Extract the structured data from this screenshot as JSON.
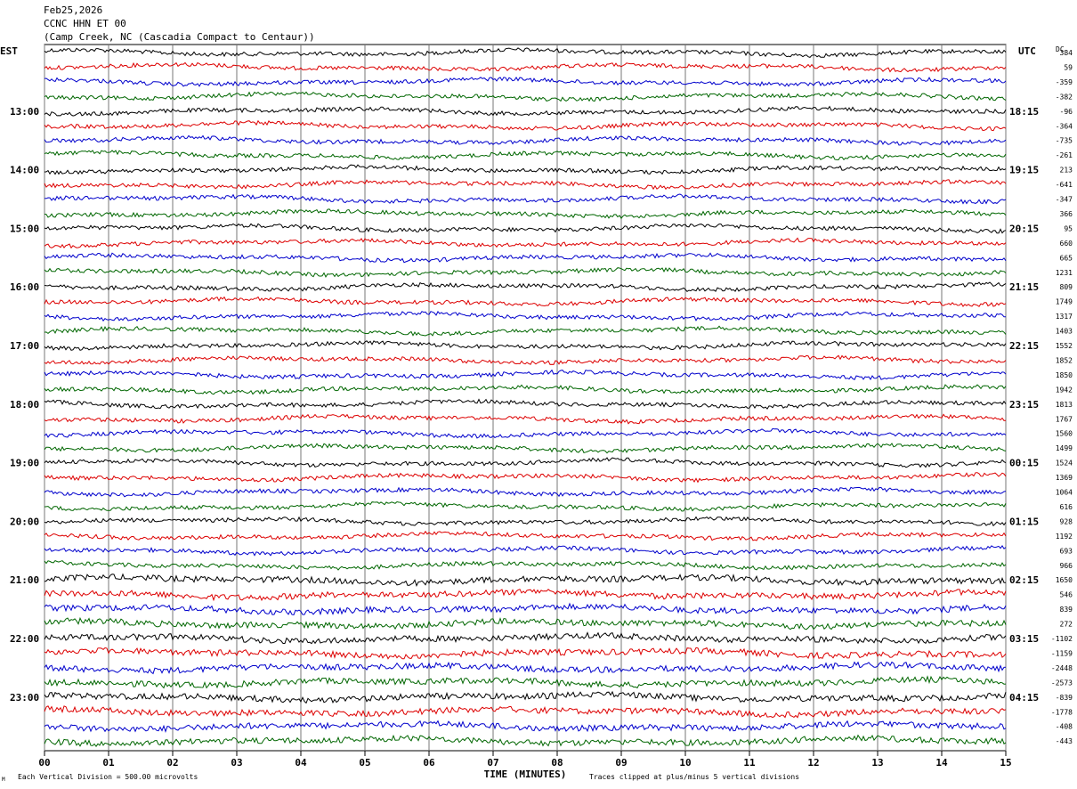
{
  "header": {
    "date": "Feb25,2026",
    "station": "CCNC HHN ET 00",
    "location": "(Camp Creek, NC (Cascadia Compact to Centaur))"
  },
  "chart_data": {
    "type": "line",
    "title": "Feb25,2026",
    "left_axis_label": "EST",
    "right_axis_label": "UTC",
    "dc_label": "DC",
    "xlabel": "TIME (MINUTES)",
    "x_ticks": [
      "00",
      "01",
      "02",
      "03",
      "04",
      "05",
      "06",
      "07",
      "08",
      "09",
      "10",
      "11",
      "12",
      "13",
      "14",
      "15"
    ],
    "xlim": [
      0,
      15
    ],
    "grid": true,
    "left_hour_labels": [
      "13:00",
      "14:00",
      "15:00",
      "16:00",
      "17:00",
      "18:00",
      "19:00",
      "20:00",
      "21:00",
      "22:00",
      "23:00"
    ],
    "right_hour_labels": [
      "18:15",
      "19:15",
      "20:15",
      "21:15",
      "22:15",
      "23:15",
      "00:15",
      "01:15",
      "02:15",
      "03:15",
      "04:15"
    ],
    "trace_colors": [
      "#000000",
      "#dd0000",
      "#0000cc",
      "#006600"
    ],
    "dc_offsets": [
      "384",
      "59",
      "-359",
      "-382",
      "-96",
      "-364",
      "-735",
      "-261",
      "213",
      "-641",
      "-347",
      "366",
      "95",
      "660",
      "665",
      "1231",
      "809",
      "1749",
      "1317",
      "1403",
      "1552",
      "1852",
      "1850",
      "1942",
      "1813",
      "1767",
      "1560",
      "1499",
      "1524",
      "1369",
      "1064",
      "616",
      "928",
      "1192",
      "693",
      "966",
      "1650",
      "546",
      "839",
      "272",
      "-1102",
      "-1159",
      "-2448",
      "-2573",
      "-839",
      "-1778",
      "-408",
      "-443"
    ],
    "footer_left": "Each Vertical Division =  500.00 microvolts",
    "footer_right": "Traces clipped at plus/minus 5 vertical divisions",
    "corner_mark": "M"
  }
}
